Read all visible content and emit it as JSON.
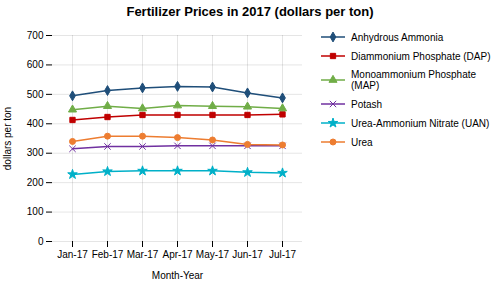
{
  "chart_data": {
    "type": "line",
    "title": "Fertilizer Prices in 2017 (dollars per ton)",
    "xlabel": "Month-Year",
    "ylabel": "dollars per ton",
    "categories": [
      "Jan-17",
      "Feb-17",
      "Mar-17",
      "Apr-17",
      "May-17",
      "Jun-17",
      "Jul-17"
    ],
    "series": [
      {
        "name": "Anhydrous Ammonia",
        "color": "#1F4E79",
        "marker": "diamond",
        "values": [
          495,
          513,
          522,
          527,
          525,
          505,
          488
        ]
      },
      {
        "name": "Diammonium Phosphate (DAP)",
        "color": "#C00000",
        "marker": "square",
        "values": [
          413,
          423,
          430,
          430,
          430,
          430,
          432
        ]
      },
      {
        "name": "Monoammonium Phosphate (MAP)",
        "color": "#70AD47",
        "marker": "triangle",
        "values": [
          448,
          460,
          452,
          462,
          460,
          458,
          452
        ]
      },
      {
        "name": "Potash",
        "color": "#7030A0",
        "marker": "times",
        "values": [
          315,
          323,
          323,
          325,
          325,
          325,
          325
        ]
      },
      {
        "name": "Urea-Ammonium Nitrate (UAN)",
        "color": "#00B0C8",
        "marker": "star",
        "values": [
          228,
          238,
          240,
          240,
          240,
          235,
          233
        ]
      },
      {
        "name": "Urea",
        "color": "#ED7D31",
        "marker": "circle",
        "values": [
          340,
          358,
          358,
          353,
          345,
          330,
          328
        ]
      }
    ],
    "ylim": [
      0,
      700
    ],
    "yticks": [
      0,
      100,
      200,
      300,
      400,
      500,
      600,
      700
    ],
    "grid": true,
    "legend": "right"
  }
}
